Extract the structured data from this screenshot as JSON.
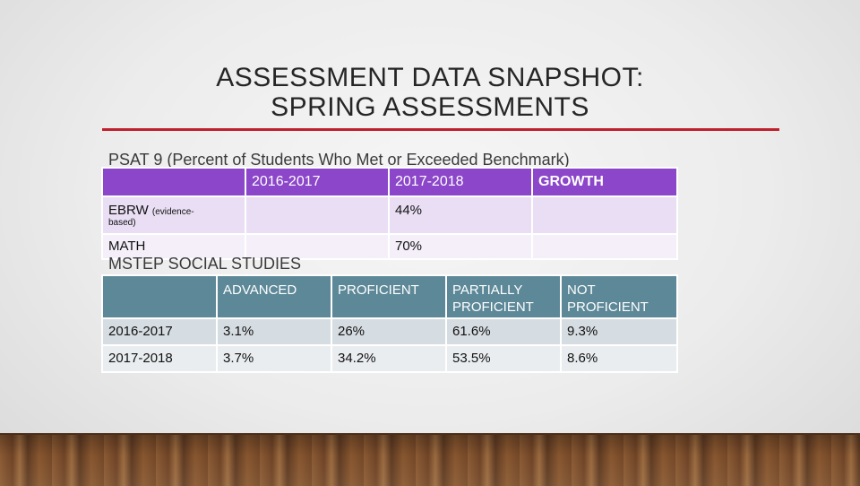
{
  "title": {
    "line1": "ASSESSMENT DATA SNAPSHOT:",
    "line2": "SPRING ASSESSMENTS"
  },
  "colors": {
    "accent_rule": "#c0202c",
    "psat_header": "#8b46c9",
    "mstep_header": "#5d8898"
  },
  "psat": {
    "label": "PSAT 9 (Percent of Students Who Met or Exceeded Benchmark)",
    "headers": [
      "",
      "2016-2017",
      "2017-2018",
      "GROWTH"
    ],
    "rows": [
      {
        "label": "EBRW",
        "note_a": "(evidence-",
        "note_b": "based)",
        "y2016": "",
        "y2017": "44%",
        "growth": ""
      },
      {
        "label": "MATH",
        "y2016": "",
        "y2017": "70%",
        "growth": ""
      }
    ]
  },
  "mstep": {
    "label": "MSTEP SOCIAL STUDIES",
    "headers": [
      "",
      "ADVANCED",
      "PROFICIENT",
      "PARTIALLY PROFICIENT",
      "NOT PROFICIENT"
    ],
    "rows": [
      {
        "year": "2016-2017",
        "advanced": "3.1%",
        "proficient": "26%",
        "partial": "61.6%",
        "not": "9.3%"
      },
      {
        "year": "2017-2018",
        "advanced": "3.7%",
        "proficient": "34.2%",
        "partial": "53.5%",
        "not": "8.6%"
      }
    ]
  }
}
